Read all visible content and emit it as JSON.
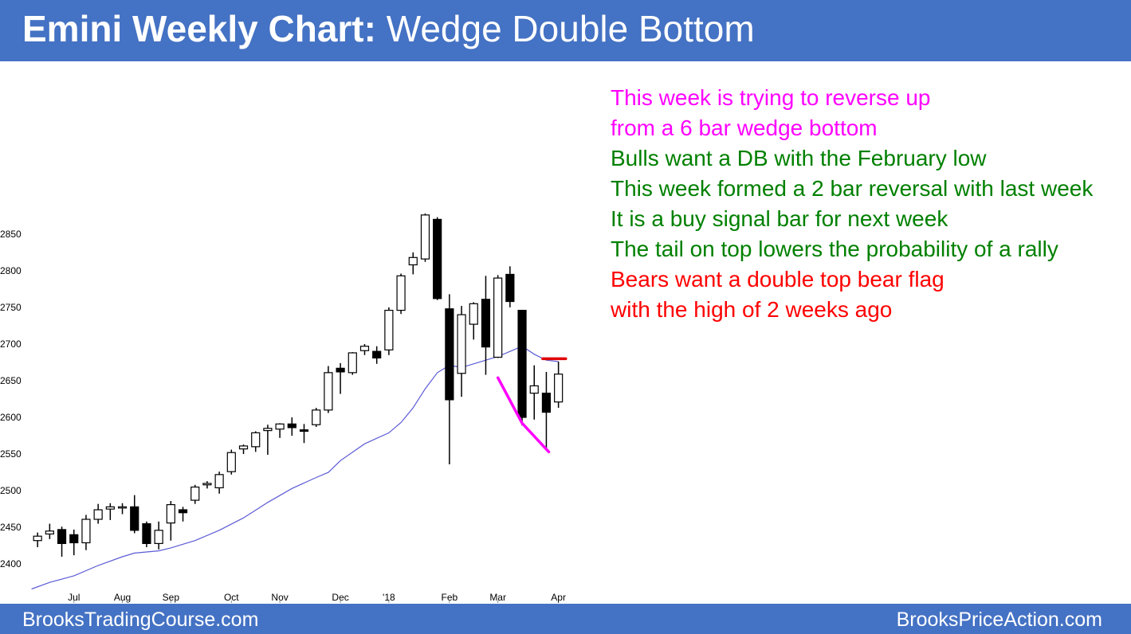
{
  "header": {
    "title_bold": "Emini Weekly Chart:",
    "title_rest": " Wedge Double Bottom"
  },
  "footer": {
    "left": "BrooksTradingCourse.com",
    "right": "BrooksPriceAction.com"
  },
  "colors": {
    "header_bg": "#4472c4",
    "bear_candle": "#000000",
    "bull_candle": "#ffffff",
    "moving_average": "#5b5bd6",
    "wedge_line": "#ff00ff",
    "resistance_line": "#e00000",
    "note_magenta": "#ff00ff",
    "note_green": "#008000",
    "note_red": "#ff0000"
  },
  "notes": [
    {
      "text": "This week is trying to reverse up",
      "color": "#ff00ff"
    },
    {
      "text": "from a 6 bar wedge bottom",
      "color": "#ff00ff"
    },
    {
      "text": "Bulls want a DB with the February low",
      "color": "#008000"
    },
    {
      "text": "This week formed a 2 bar reversal with last week",
      "color": "#008000"
    },
    {
      "text": "It is a buy signal bar for next week",
      "color": "#008000"
    },
    {
      "text": "The tail on top lowers the probability of a rally",
      "color": "#008000"
    },
    {
      "text": "Bears want a double top bear flag",
      "color": "#ff0000"
    },
    {
      "text": "with the high of 2 weeks ago",
      "color": "#ff0000"
    }
  ],
  "chart_data": {
    "type": "candlestick",
    "title": "",
    "grid": false,
    "y_axis": {
      "ticks": [
        2400,
        2450,
        2500,
        2550,
        2600,
        2650,
        2700,
        2750,
        2800,
        2850
      ],
      "range": [
        2360,
        2890
      ]
    },
    "x_axis": {
      "labels": [
        {
          "text": "Jul",
          "week": 3
        },
        {
          "text": "Aug",
          "week": 7
        },
        {
          "text": "Sep",
          "week": 11
        },
        {
          "text": "Oct",
          "week": 16
        },
        {
          "text": "Nov",
          "week": 20
        },
        {
          "text": "Dec",
          "week": 25
        },
        {
          "text": "'18",
          "week": 29
        },
        {
          "text": "Feb",
          "week": 34
        },
        {
          "text": "Mar",
          "week": 38
        },
        {
          "text": "Apr",
          "week": 43
        }
      ],
      "week_range": [
        -0.8,
        44.8
      ]
    },
    "candles": [
      {
        "o": 2432,
        "h": 2443,
        "l": 2423,
        "c": 2438
      },
      {
        "o": 2441,
        "h": 2455,
        "l": 2434,
        "c": 2445
      },
      {
        "o": 2447,
        "h": 2451,
        "l": 2410,
        "c": 2428
      },
      {
        "o": 2440,
        "h": 2447,
        "l": 2412,
        "c": 2429
      },
      {
        "o": 2429,
        "h": 2467,
        "l": 2419,
        "c": 2461
      },
      {
        "o": 2461,
        "h": 2482,
        "l": 2455,
        "c": 2474
      },
      {
        "o": 2475,
        "h": 2483,
        "l": 2460,
        "c": 2478
      },
      {
        "o": 2477,
        "h": 2483,
        "l": 2468,
        "c": 2478
      },
      {
        "o": 2478,
        "h": 2494,
        "l": 2442,
        "c": 2446
      },
      {
        "o": 2455,
        "h": 2458,
        "l": 2423,
        "c": 2428
      },
      {
        "o": 2428,
        "h": 2458,
        "l": 2420,
        "c": 2446
      },
      {
        "o": 2456,
        "h": 2486,
        "l": 2432,
        "c": 2481
      },
      {
        "o": 2474,
        "h": 2478,
        "l": 2458,
        "c": 2470
      },
      {
        "o": 2487,
        "h": 2508,
        "l": 2482,
        "c": 2505
      },
      {
        "o": 2508,
        "h": 2513,
        "l": 2503,
        "c": 2510
      },
      {
        "o": 2504,
        "h": 2526,
        "l": 2496,
        "c": 2522
      },
      {
        "o": 2526,
        "h": 2556,
        "l": 2522,
        "c": 2552
      },
      {
        "o": 2557,
        "h": 2563,
        "l": 2550,
        "c": 2561
      },
      {
        "o": 2560,
        "h": 2581,
        "l": 2553,
        "c": 2579
      },
      {
        "o": 2582,
        "h": 2590,
        "l": 2549,
        "c": 2585
      },
      {
        "o": 2584,
        "h": 2592,
        "l": 2572,
        "c": 2591
      },
      {
        "o": 2591,
        "h": 2600,
        "l": 2575,
        "c": 2586
      },
      {
        "o": 2583,
        "h": 2591,
        "l": 2565,
        "c": 2581
      },
      {
        "o": 2590,
        "h": 2613,
        "l": 2587,
        "c": 2610
      },
      {
        "o": 2610,
        "h": 2670,
        "l": 2606,
        "c": 2661
      },
      {
        "o": 2667,
        "h": 2674,
        "l": 2632,
        "c": 2662
      },
      {
        "o": 2661,
        "h": 2689,
        "l": 2658,
        "c": 2688
      },
      {
        "o": 2691,
        "h": 2700,
        "l": 2685,
        "c": 2697
      },
      {
        "o": 2690,
        "h": 2697,
        "l": 2673,
        "c": 2681
      },
      {
        "o": 2692,
        "h": 2750,
        "l": 2685,
        "c": 2746
      },
      {
        "o": 2746,
        "h": 2796,
        "l": 2741,
        "c": 2793
      },
      {
        "o": 2808,
        "h": 2825,
        "l": 2795,
        "c": 2818
      },
      {
        "o": 2816,
        "h": 2878,
        "l": 2812,
        "c": 2876
      },
      {
        "o": 2870,
        "h": 2873,
        "l": 2760,
        "c": 2762
      },
      {
        "o": 2748,
        "h": 2768,
        "l": 2536,
        "c": 2624
      },
      {
        "o": 2660,
        "h": 2752,
        "l": 2628,
        "c": 2740
      },
      {
        "o": 2727,
        "h": 2757,
        "l": 2706,
        "c": 2755
      },
      {
        "o": 2761,
        "h": 2793,
        "l": 2658,
        "c": 2696
      },
      {
        "o": 2682,
        "h": 2794,
        "l": 2681,
        "c": 2790
      },
      {
        "o": 2795,
        "h": 2806,
        "l": 2750,
        "c": 2758
      },
      {
        "o": 2746,
        "h": 2746,
        "l": 2589,
        "c": 2600
      },
      {
        "o": 2633,
        "h": 2671,
        "l": 2597,
        "c": 2643
      },
      {
        "o": 2633,
        "h": 2662,
        "l": 2556,
        "c": 2607
      },
      {
        "o": 2621,
        "h": 2676,
        "l": 2613,
        "c": 2659
      }
    ],
    "moving_average": [
      [
        -0.5,
        2366
      ],
      [
        1,
        2375
      ],
      [
        3,
        2384
      ],
      [
        5,
        2398
      ],
      [
        7,
        2410
      ],
      [
        8,
        2415
      ],
      [
        10,
        2418
      ],
      [
        11,
        2422
      ],
      [
        13,
        2432
      ],
      [
        15,
        2446
      ],
      [
        17,
        2463
      ],
      [
        19,
        2484
      ],
      [
        21,
        2503
      ],
      [
        23,
        2518
      ],
      [
        24,
        2525
      ],
      [
        25,
        2541
      ],
      [
        27,
        2564
      ],
      [
        29,
        2579
      ],
      [
        30,
        2593
      ],
      [
        31,
        2613
      ],
      [
        32,
        2639
      ],
      [
        33,
        2661
      ],
      [
        34,
        2671
      ],
      [
        35,
        2668
      ],
      [
        37,
        2678
      ],
      [
        38,
        2683
      ],
      [
        39,
        2690
      ],
      [
        40,
        2697
      ],
      [
        41,
        2686
      ],
      [
        42,
        2678
      ],
      [
        43,
        2676
      ]
    ],
    "annotations": [
      {
        "type": "wedge_line",
        "color": "#ff00ff",
        "points": [
          [
            38,
            2654
          ],
          [
            40,
            2592
          ],
          [
            42.2,
            2553
          ]
        ]
      },
      {
        "type": "resistance_line",
        "color": "#e00000",
        "points": [
          [
            41.7,
            2680
          ],
          [
            43.6,
            2680
          ]
        ]
      }
    ]
  }
}
